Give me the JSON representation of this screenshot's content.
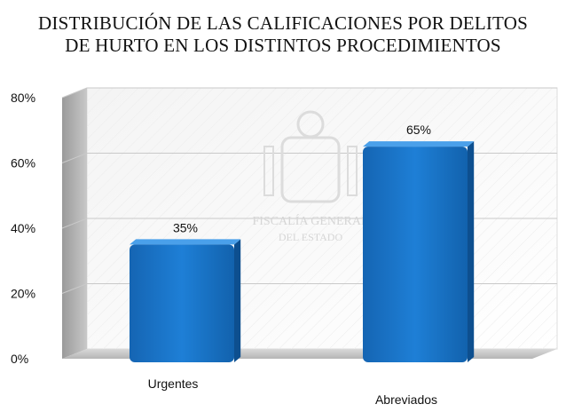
{
  "chart_data": {
    "type": "bar",
    "title_lines": [
      "DISTRIBUCIÓN DE LAS CALIFICACIONES POR DELITOS",
      "DE HURTO EN  LOS DISTINTOS PROCEDIMIENTOS"
    ],
    "categories": [
      "Urgentes",
      "Abreviados"
    ],
    "values": [
      35,
      65
    ],
    "data_labels": [
      "35%",
      "65%"
    ],
    "ylim": [
      0,
      80
    ],
    "yticks": [
      0,
      20,
      40,
      60,
      80
    ],
    "ytick_labels": [
      "0%",
      "20%",
      "40%",
      "60%",
      "80%"
    ],
    "grid": true,
    "style": "3d",
    "bar_color": "#1a73c4"
  },
  "watermark": {
    "lines": [
      "FISCALÍA GENERAL",
      "DEL ESTADO"
    ]
  }
}
